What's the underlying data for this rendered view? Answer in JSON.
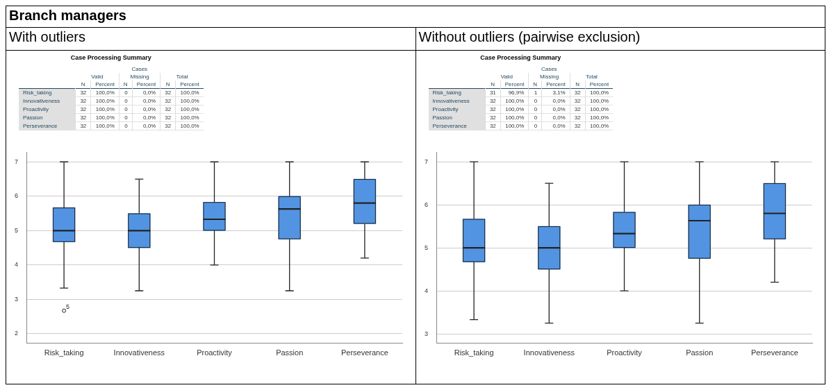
{
  "chart_data": [
    {
      "type": "other",
      "title": "Branch managers",
      "annotations": [
        "With outliers",
        "Without outliers (pairwise exclusion)"
      ]
    },
    {
      "type": "other",
      "title": "Case Processing Summary",
      "annotations": [
        "Cases",
        "Valid",
        "Missing",
        "Total"
      ],
      "categories": [
        "N",
        "Percent",
        "N",
        "Percent",
        "N",
        "Percent"
      ],
      "y_categories": [
        "Risk_taking",
        "Innovativeness",
        "Proactivity",
        "Passion",
        "Perseverance"
      ],
      "cell_labels": [
        [
          "32",
          "100,0%",
          "0",
          "0,0%",
          "32",
          "100,0%"
        ],
        [
          "32",
          "100,0%",
          "0",
          "0,0%",
          "32",
          "100,0%"
        ],
        [
          "32",
          "100,0%",
          "0",
          "0,0%",
          "32",
          "100,0%"
        ],
        [
          "32",
          "100,0%",
          "0",
          "0,0%",
          "32",
          "100,0%"
        ],
        [
          "32",
          "100,0%",
          "0",
          "0,0%",
          "32",
          "100,0%"
        ]
      ]
    },
    {
      "type": "box",
      "categories": [
        "Risk_taking",
        "Innovativeness",
        "Proactivity",
        "Passion",
        "Perseverance"
      ],
      "color": "#5294e2",
      "ylim": [
        1.72,
        7.28
      ],
      "yticks": [
        2,
        3,
        4,
        5,
        6,
        7
      ],
      "grid": "y",
      "boxes": [
        {
          "low": 3.33,
          "q1": 4.67,
          "median": 5,
          "q3": 5.67,
          "high": 7,
          "outliers": [
            2.67
          ]
        },
        {
          "low": 3.25,
          "q1": 4.5,
          "median": 5,
          "q3": 5.5,
          "high": 6.5
        },
        {
          "low": 4,
          "q1": 5,
          "median": 5.33,
          "q3": 5.83,
          "high": 7
        },
        {
          "low": 3.25,
          "q1": 4.75,
          "median": 5.63,
          "q3": 6,
          "high": 7
        },
        {
          "low": 4.2,
          "q1": 5.2,
          "median": 5.8,
          "q3": 6.5,
          "high": 7
        }
      ],
      "annotations": [
        "5"
      ]
    },
    {
      "type": "other",
      "title": "Case Processing Summary",
      "annotations": [
        "Cases",
        "Valid",
        "Missing",
        "Total"
      ],
      "categories": [
        "N",
        "Percent",
        "N",
        "Percent",
        "N",
        "Percent"
      ],
      "y_categories": [
        "Risk_taking",
        "Innovativeness",
        "Proactivity",
        "Passion",
        "Perseverance"
      ],
      "cell_labels": [
        [
          "31",
          "96,9%",
          "1",
          "3,1%",
          "32",
          "100,0%"
        ],
        [
          "32",
          "100,0%",
          "0",
          "0,0%",
          "32",
          "100,0%"
        ],
        [
          "32",
          "100,0%",
          "0",
          "0,0%",
          "32",
          "100,0%"
        ],
        [
          "32",
          "100,0%",
          "0",
          "0,0%",
          "32",
          "100,0%"
        ],
        [
          "32",
          "100,0%",
          "0",
          "0,0%",
          "32",
          "100,0%"
        ]
      ]
    },
    {
      "type": "box",
      "categories": [
        "Risk_taking",
        "Innovativeness",
        "Proactivity",
        "Passion",
        "Perseverance"
      ],
      "color": "#5294e2",
      "ylim": [
        2.78,
        7.22
      ],
      "yticks": [
        3,
        4,
        5,
        6,
        7
      ],
      "grid": "y",
      "boxes": [
        {
          "low": 3.33,
          "q1": 4.67,
          "median": 5,
          "q3": 5.67,
          "high": 7
        },
        {
          "low": 3.25,
          "q1": 4.5,
          "median": 5,
          "q3": 5.5,
          "high": 6.5
        },
        {
          "low": 4,
          "q1": 5,
          "median": 5.33,
          "q3": 5.83,
          "high": 7
        },
        {
          "low": 3.25,
          "q1": 4.75,
          "median": 5.63,
          "q3": 6,
          "high": 7
        },
        {
          "low": 4.2,
          "q1": 5.2,
          "median": 5.8,
          "q3": 6.5,
          "high": 7
        }
      ]
    }
  ]
}
